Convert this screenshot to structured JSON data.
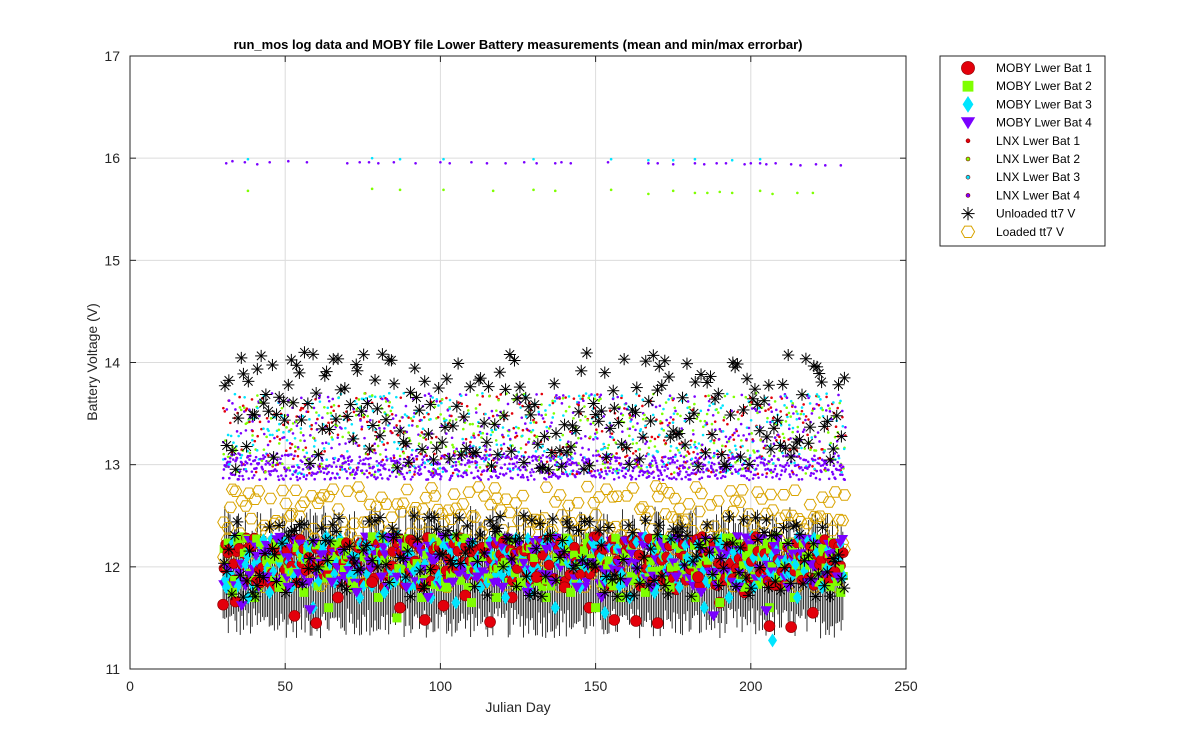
{
  "chart_data": {
    "type": "scatter",
    "title": "run_mos log data and MOBY file Lower Battery measurements (mean and min/max errorbar)",
    "xlabel": "Julian Day",
    "ylabel": "Battery Voltage (V)",
    "xlim": [
      0,
      250
    ],
    "ylim": [
      11,
      17
    ],
    "xticks": [
      "0",
      "50",
      "100",
      "150",
      "200",
      "250"
    ],
    "yticks": [
      "11",
      "12",
      "13",
      "14",
      "15",
      "16",
      "17"
    ],
    "grid": true,
    "legend_position": "outside-top-right",
    "series": [
      {
        "name": "MOBY Lwer Bat 1",
        "marker": "circle",
        "color": "#e3000b",
        "x": [
          30,
          34,
          42,
          46,
          53,
          60,
          67,
          78,
          87,
          95,
          101,
          108,
          116,
          123,
          131,
          140,
          148,
          156,
          163,
          170,
          176,
          183,
          190,
          198,
          206,
          213,
          220,
          227
        ],
        "y": [
          11.63,
          11.66,
          11.85,
          11.8,
          11.52,
          11.45,
          11.7,
          11.85,
          11.6,
          11.48,
          11.62,
          11.72,
          11.46,
          11.7,
          11.9,
          11.8,
          11.6,
          11.48,
          11.47,
          11.45,
          11.78,
          11.9,
          11.65,
          11.75,
          11.42,
          11.41,
          11.55,
          11.95
        ]
      },
      {
        "name": "MOBY Lwer Bat 2",
        "marker": "square",
        "color": "#7fff00",
        "x": [
          33,
          40,
          48,
          56,
          64,
          72,
          80,
          86,
          94,
          102,
          110,
          118,
          126,
          134,
          142,
          150,
          158,
          166,
          174,
          182,
          190,
          198,
          206,
          214,
          222,
          229
        ],
        "y": [
          11.75,
          11.7,
          11.8,
          11.75,
          11.6,
          11.8,
          11.7,
          11.5,
          11.7,
          11.8,
          11.65,
          11.7,
          11.85,
          11.7,
          11.75,
          11.6,
          11.7,
          11.75,
          11.8,
          11.7,
          11.65,
          11.8,
          11.6,
          11.7,
          11.85,
          11.75
        ]
      },
      {
        "name": "MOBY Lwer Bat 3",
        "marker": "diamond",
        "color": "#00e5ff",
        "x": [
          31,
          38,
          45,
          52,
          59,
          66,
          74,
          82,
          90,
          97,
          105,
          113,
          121,
          129,
          137,
          145,
          153,
          161,
          169,
          177,
          185,
          193,
          201,
          207,
          215,
          223
        ],
        "y": [
          11.8,
          11.7,
          11.75,
          11.8,
          11.6,
          11.85,
          11.7,
          11.75,
          11.8,
          11.7,
          11.65,
          11.8,
          11.7,
          11.75,
          11.6,
          11.8,
          11.55,
          11.7,
          11.75,
          11.8,
          11.6,
          11.7,
          11.8,
          11.28,
          11.7,
          11.8
        ]
      },
      {
        "name": "MOBY Lwer Bat 4",
        "marker": "triangle-down",
        "color": "#7a00ff",
        "x": [
          36,
          44,
          51,
          58,
          65,
          73,
          81,
          89,
          96,
          104,
          112,
          120,
          128,
          136,
          144,
          152,
          160,
          168,
          176,
          184,
          188,
          196,
          205,
          212,
          220,
          228
        ],
        "y": [
          11.62,
          11.9,
          11.8,
          11.58,
          11.85,
          11.75,
          11.9,
          11.8,
          11.7,
          11.85,
          11.9,
          11.8,
          11.75,
          11.85,
          11.8,
          11.7,
          11.85,
          11.8,
          11.9,
          11.75,
          11.52,
          11.8,
          11.57,
          11.8,
          11.85,
          11.9
        ]
      },
      {
        "name": "LNX Lwer Bat 1",
        "marker": "dot",
        "color": "#e3000b",
        "x": [],
        "y": []
      },
      {
        "name": "LNX Lwer Bat 2",
        "marker": "dot",
        "color": "#7fff00",
        "x": [
          38,
          78,
          87,
          101,
          117,
          130,
          137,
          155,
          167,
          175,
          182,
          186,
          190,
          194,
          203,
          207,
          215,
          220
        ],
        "y": [
          15.68,
          15.7,
          15.69,
          15.69,
          15.68,
          15.69,
          15.68,
          15.69,
          15.65,
          15.68,
          15.66,
          15.66,
          15.67,
          15.66,
          15.68,
          15.65,
          15.66,
          15.66
        ]
      },
      {
        "name": "LNX Lwer Bat 3",
        "marker": "dot",
        "color": "#00e5ff",
        "x": [
          38,
          78,
          87,
          101,
          130,
          155,
          167,
          175,
          182,
          194,
          203
        ],
        "y": [
          15.99,
          16.0,
          15.99,
          15.99,
          15.99,
          15.99,
          15.98,
          15.98,
          15.99,
          15.98,
          15.99
        ]
      },
      {
        "name": "LNX Lwer Bat 4",
        "marker": "dot",
        "color": "#7a00ff",
        "x": [
          31,
          33,
          37,
          41,
          45,
          51,
          57,
          70,
          74,
          77,
          80,
          85,
          92,
          100,
          103,
          110,
          115,
          121,
          127,
          131,
          137,
          139,
          142,
          154,
          167,
          170,
          175,
          182,
          185,
          189,
          192,
          198,
          200,
          203,
          205,
          208,
          213,
          216,
          221,
          224,
          229
        ],
        "y": [
          15.95,
          15.97,
          15.96,
          15.94,
          15.96,
          15.97,
          15.96,
          15.95,
          15.96,
          15.96,
          15.95,
          15.96,
          15.95,
          15.96,
          15.95,
          15.96,
          15.95,
          15.95,
          15.96,
          15.95,
          15.95,
          15.96,
          15.95,
          15.96,
          15.95,
          15.95,
          15.94,
          15.95,
          15.94,
          15.95,
          15.95,
          15.94,
          15.95,
          15.95,
          15.94,
          15.95,
          15.94,
          15.93,
          15.94,
          15.93,
          15.93
        ]
      },
      {
        "name": "Unloaded tt7 V",
        "marker": "asterisk",
        "color": "#000000",
        "x": [],
        "y": []
      },
      {
        "name": "Loaded tt7 V",
        "marker": "hexagon",
        "color": "#d9a400",
        "x": [],
        "y": []
      }
    ],
    "bands": {
      "x_range": [
        30,
        230
      ],
      "lnx_upper": {
        "min": 12.9,
        "max": 13.7,
        "drift": -0.002
      },
      "lnx_lower": {
        "min": 12.85,
        "max": 13.1
      },
      "unloaded_upper": {
        "min": 12.95,
        "max": 14.1
      },
      "unloaded_lower": {
        "min": 11.7,
        "max": 12.5
      },
      "loaded_upper": {
        "min": 12.3,
        "max": 12.8
      },
      "loaded_lower": {
        "min": 11.8,
        "max": 12.3
      },
      "moby_means": {
        "min": 11.8,
        "max": 12.3
      },
      "errorbar_low": {
        "min": 11.3,
        "max": 11.6
      },
      "errorbar_high": {
        "min": 12.1,
        "max": 12.6
      }
    }
  }
}
